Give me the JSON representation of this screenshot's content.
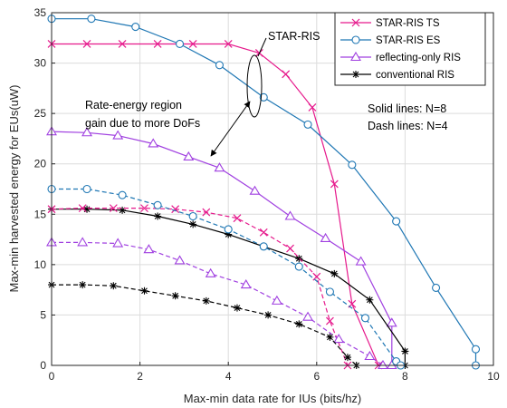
{
  "chart_data": {
    "type": "line",
    "title": "",
    "xlabel": "Max-min data rate for IUs  (bits/hz)",
    "ylabel": "Max-min harvested energy for EUs(uW)",
    "xlim": [
      0,
      10
    ],
    "ylim": [
      0,
      35
    ],
    "xticks": [
      "0",
      "2",
      "4",
      "6",
      "8",
      "10"
    ],
    "yticks": [
      "0",
      "5",
      "10",
      "15",
      "20",
      "25",
      "30",
      "35"
    ],
    "grid": true,
    "legend_position": "top-right",
    "annotations": {
      "star_ris": "STAR-RIS",
      "gain_line1": "Rate-energy region",
      "gain_line2": "gain due to more DoFs",
      "solid_note": "Solid lines: N=8",
      "dash_note": "Dash lines: N=4"
    },
    "series": [
      {
        "name": "STAR-RIS TS",
        "color": "#e6198c",
        "marker": "x",
        "dash": "solid",
        "points": [
          [
            0,
            31.9
          ],
          [
            0.8,
            31.9
          ],
          [
            1.6,
            31.9
          ],
          [
            2.4,
            31.9
          ],
          [
            3.2,
            31.9
          ],
          [
            4.0,
            31.9
          ],
          [
            4.7,
            31.0
          ],
          [
            5.3,
            28.9
          ],
          [
            5.9,
            25.6
          ],
          [
            6.4,
            18.0
          ],
          [
            6.8,
            6.1
          ],
          [
            7.4,
            0
          ]
        ]
      },
      {
        "name": "STAR-RIS ES",
        "color": "#1f77b4",
        "marker": "o",
        "dash": "solid",
        "points": [
          [
            0,
            34.4
          ],
          [
            0.9,
            34.4
          ],
          [
            1.9,
            33.6
          ],
          [
            2.9,
            31.9
          ],
          [
            3.8,
            29.8
          ],
          [
            4.8,
            26.6
          ],
          [
            5.8,
            23.9
          ],
          [
            6.8,
            19.9
          ],
          [
            7.8,
            14.3
          ],
          [
            8.7,
            7.7
          ],
          [
            9.6,
            1.6
          ],
          [
            9.6,
            0
          ]
        ]
      },
      {
        "name": "reflecting-only RIS",
        "color": "#a040e0",
        "marker": "^",
        "dash": "solid",
        "points": [
          [
            0,
            23.2
          ],
          [
            0.8,
            23.1
          ],
          [
            1.5,
            22.8
          ],
          [
            2.3,
            22.0
          ],
          [
            3.1,
            20.7
          ],
          [
            3.8,
            19.6
          ],
          [
            4.6,
            17.3
          ],
          [
            5.4,
            14.8
          ],
          [
            6.2,
            12.6
          ],
          [
            7.0,
            10.3
          ],
          [
            7.7,
            4.2
          ],
          [
            7.7,
            0
          ]
        ]
      },
      {
        "name": "conventional RIS",
        "color": "#000000",
        "marker": "*",
        "dash": "solid",
        "points": [
          [
            0,
            15.5
          ],
          [
            0.8,
            15.5
          ],
          [
            1.6,
            15.4
          ],
          [
            2.4,
            14.8
          ],
          [
            3.2,
            14.0
          ],
          [
            4.0,
            13.0
          ],
          [
            4.8,
            11.8
          ],
          [
            5.6,
            10.6
          ],
          [
            6.4,
            9.1
          ],
          [
            7.2,
            6.5
          ],
          [
            8.0,
            1.4
          ],
          [
            8.0,
            0
          ]
        ]
      },
      {
        "name": "",
        "color": "#e6198c",
        "marker": "x",
        "dash": "dashed",
        "points": [
          [
            0,
            15.5
          ],
          [
            0.7,
            15.6
          ],
          [
            1.4,
            15.6
          ],
          [
            2.1,
            15.6
          ],
          [
            2.8,
            15.5
          ],
          [
            3.5,
            15.2
          ],
          [
            4.2,
            14.6
          ],
          [
            4.8,
            13.2
          ],
          [
            5.4,
            11.6
          ],
          [
            6.0,
            8.8
          ],
          [
            6.3,
            4.4
          ],
          [
            6.7,
            0
          ]
        ]
      },
      {
        "name": "",
        "color": "#1f77b4",
        "marker": "o",
        "dash": "dashed",
        "points": [
          [
            0,
            17.5
          ],
          [
            0.8,
            17.5
          ],
          [
            1.6,
            16.9
          ],
          [
            2.4,
            15.9
          ],
          [
            3.2,
            14.8
          ],
          [
            4.0,
            13.5
          ],
          [
            4.8,
            11.8
          ],
          [
            5.6,
            9.8
          ],
          [
            6.3,
            7.3
          ],
          [
            7.1,
            4.7
          ],
          [
            7.8,
            0.4
          ],
          [
            7.9,
            0
          ]
        ]
      },
      {
        "name": "",
        "color": "#a040e0",
        "marker": "^",
        "dash": "dashed",
        "points": [
          [
            0,
            12.2
          ],
          [
            0.7,
            12.2
          ],
          [
            1.5,
            12.1
          ],
          [
            2.2,
            11.5
          ],
          [
            2.9,
            10.4
          ],
          [
            3.6,
            9.1
          ],
          [
            4.4,
            8.0
          ],
          [
            5.1,
            6.4
          ],
          [
            5.8,
            4.8
          ],
          [
            6.5,
            2.6
          ],
          [
            7.2,
            0.9
          ],
          [
            7.5,
            0
          ]
        ]
      },
      {
        "name": "",
        "color": "#000000",
        "marker": "*",
        "dash": "dashed",
        "points": [
          [
            0,
            8.0
          ],
          [
            0.7,
            8.0
          ],
          [
            1.4,
            7.9
          ],
          [
            2.1,
            7.4
          ],
          [
            2.8,
            6.9
          ],
          [
            3.5,
            6.4
          ],
          [
            4.2,
            5.7
          ],
          [
            4.9,
            5.0
          ],
          [
            5.6,
            4.1
          ],
          [
            6.3,
            2.8
          ],
          [
            6.7,
            0.8
          ],
          [
            6.9,
            0
          ]
        ]
      }
    ]
  }
}
